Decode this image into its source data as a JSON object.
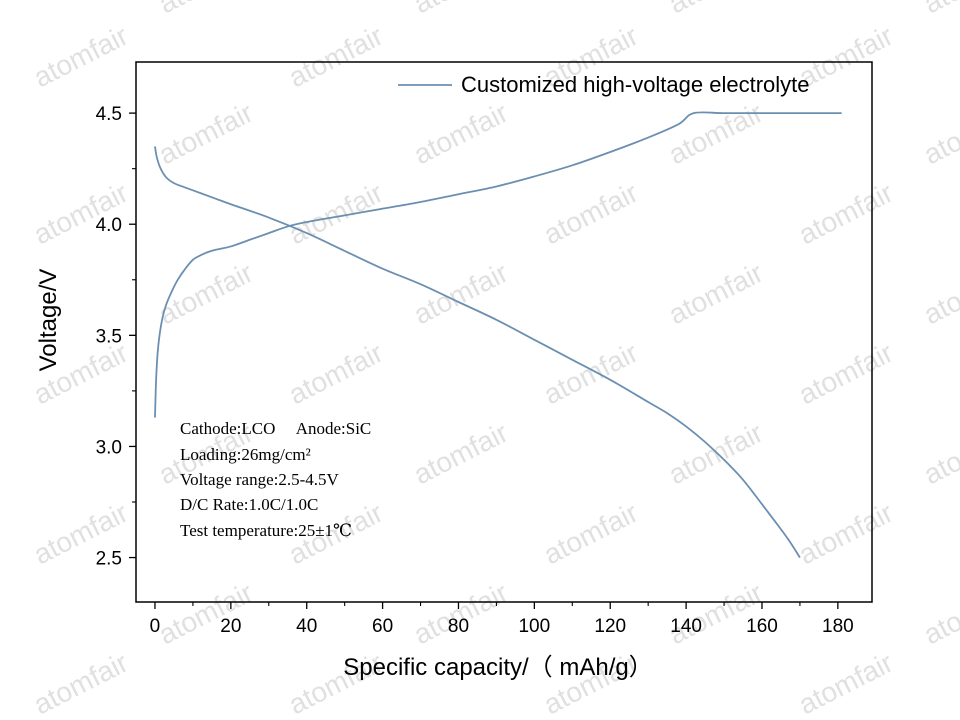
{
  "watermark_text": "atomfair",
  "chart_data": {
    "type": "line",
    "xlabel": "Specific capacity/（ mAh/g）",
    "ylabel": "Voltage/V",
    "xlim": [
      -5,
      189
    ],
    "ylim": [
      2.3,
      4.73
    ],
    "x_ticks": [
      0,
      20,
      40,
      60,
      80,
      100,
      120,
      140,
      160,
      180
    ],
    "x_tick_labels": [
      "0",
      "20",
      "40",
      "60",
      "80",
      "100",
      "120",
      "140",
      "160",
      "180"
    ],
    "y_ticks": [
      2.5,
      3.0,
      3.5,
      4.0,
      4.5
    ],
    "y_tick_labels": [
      "2.5",
      "3.0",
      "3.5",
      "4.0",
      "4.5"
    ],
    "grid": false,
    "legend_position": "top-right",
    "line_color": "#6b8fb1",
    "series": [
      {
        "name": "Customized high-voltage electrolyte",
        "segment": "charge",
        "x": [
          0,
          0.3,
          0.7,
          1.2,
          2,
          3,
          4.5,
          6,
          8,
          10,
          12,
          14,
          16,
          20,
          25,
          30,
          35,
          40,
          50,
          60,
          70,
          80,
          90,
          100,
          110,
          120,
          130,
          138,
          142,
          150,
          160,
          170,
          181
        ],
        "y": [
          3.13,
          3.3,
          3.42,
          3.5,
          3.58,
          3.64,
          3.7,
          3.75,
          3.8,
          3.84,
          3.86,
          3.875,
          3.885,
          3.9,
          3.93,
          3.96,
          3.99,
          4.01,
          4.04,
          4.07,
          4.1,
          4.135,
          4.17,
          4.215,
          4.265,
          4.325,
          4.39,
          4.45,
          4.5,
          4.5,
          4.5,
          4.5,
          4.5
        ]
      },
      {
        "name": "Customized high-voltage electrolyte",
        "segment": "discharge",
        "x": [
          0,
          0.5,
          1.5,
          3,
          5,
          8,
          12,
          16,
          20,
          30,
          40,
          50,
          60,
          70,
          80,
          90,
          100,
          110,
          120,
          130,
          135,
          140,
          145,
          150,
          155,
          160,
          164,
          167,
          170
        ],
        "y": [
          4.35,
          4.3,
          4.25,
          4.21,
          4.185,
          4.165,
          4.14,
          4.115,
          4.09,
          4.03,
          3.96,
          3.88,
          3.8,
          3.73,
          3.65,
          3.57,
          3.48,
          3.39,
          3.3,
          3.2,
          3.15,
          3.09,
          3.02,
          2.94,
          2.85,
          2.74,
          2.65,
          2.58,
          2.5
        ]
      }
    ],
    "legend_label": "Customized high-voltage electrolyte",
    "annotations": [
      "Cathode:LCO     Anode:SiC",
      "Loading:26mg/cm²",
      "Voltage range:2.5-4.5V",
      "D/C Rate:1.0C/1.0C",
      "Test temperature:25±1℃"
    ]
  }
}
